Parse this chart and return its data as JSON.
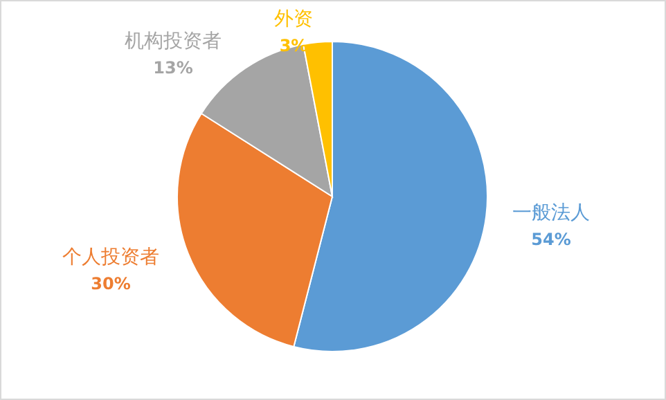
{
  "chart_data": {
    "type": "pie",
    "categories": [
      "一般法人",
      "个人投资者",
      "机构投资者",
      "外资"
    ],
    "values": [
      54,
      30,
      13,
      3
    ],
    "colors": [
      "#5b9bd5",
      "#ed7d31",
      "#a5a5a5",
      "#ffc000"
    ],
    "value_labels": [
      "54%",
      "30%",
      "13%",
      "3%"
    ]
  }
}
